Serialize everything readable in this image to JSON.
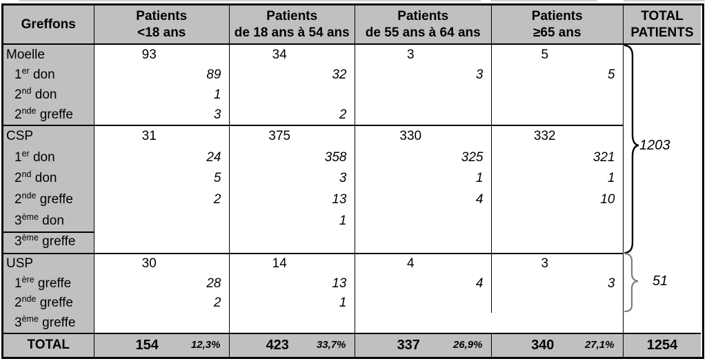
{
  "table": {
    "columns": [
      {
        "key": "greffons",
        "lines": [
          "Greffons"
        ]
      },
      {
        "key": "patients-lt-18",
        "lines": [
          "Patients",
          "<18 ans"
        ]
      },
      {
        "key": "patients-18-54",
        "lines": [
          "Patients",
          "de 18 ans à 54 ans"
        ]
      },
      {
        "key": "patients-55-64",
        "lines": [
          "Patients",
          "de 55 ans à 64 ans"
        ]
      },
      {
        "key": "patients-ge-65",
        "lines": [
          "Patients",
          "≥65 ans"
        ]
      },
      {
        "key": "total-patients",
        "lines": [
          "TOTAL",
          "PATIENTS"
        ]
      }
    ],
    "sections": [
      {
        "name": "Moelle",
        "rows": [
          {
            "pre": "Moelle",
            "sup": "",
            "post": "",
            "type": "main",
            "values": [
              "93",
              "34",
              "3",
              "5"
            ]
          },
          {
            "pre": "1",
            "sup": "er",
            "post": " don",
            "type": "sub",
            "values": [
              "89",
              "32",
              "3",
              "5"
            ]
          },
          {
            "pre": "2",
            "sup": "nd",
            "post": " don",
            "type": "sub",
            "values": [
              "1",
              "",
              "",
              ""
            ]
          },
          {
            "pre": "2",
            "sup": "nde",
            "post": " greffe",
            "type": "sub",
            "values": [
              "3",
              "2",
              "",
              ""
            ]
          }
        ]
      },
      {
        "name": "CSP",
        "rows": [
          {
            "pre": "CSP",
            "sup": "",
            "post": "",
            "type": "main",
            "values": [
              "31",
              "375",
              "330",
              "332"
            ]
          },
          {
            "pre": "1",
            "sup": "er",
            "post": " don",
            "type": "sub",
            "values": [
              "24",
              "358",
              "325",
              "321"
            ]
          },
          {
            "pre": "2",
            "sup": "nd",
            "post": " don",
            "type": "sub",
            "values": [
              "5",
              "3",
              "1",
              "1"
            ]
          },
          {
            "pre": "2",
            "sup": "nde",
            "post": " greffe",
            "type": "sub",
            "values": [
              "2",
              "13",
              "4",
              "10"
            ]
          },
          {
            "pre": "3",
            "sup": "ème",
            "post": " don",
            "type": "sub",
            "values": [
              "",
              "1",
              "",
              ""
            ],
            "label_underline": true
          },
          {
            "pre": "3",
            "sup": "ème",
            "post": " greffe",
            "type": "sub",
            "values": [
              "",
              "",
              "",
              ""
            ]
          }
        ]
      },
      {
        "name": "USP",
        "rows": [
          {
            "pre": "USP",
            "sup": "",
            "post": "",
            "type": "main",
            "values": [
              "30",
              "14",
              "4",
              "3"
            ]
          },
          {
            "pre": "1",
            "sup": "ère",
            "post": " greffe",
            "type": "sub",
            "values": [
              "28",
              "13",
              "4",
              "3"
            ]
          },
          {
            "pre": "2",
            "sup": "nde",
            "post": " greffe",
            "type": "sub",
            "values": [
              "2",
              "1",
              "",
              ""
            ]
          },
          {
            "pre": "3",
            "sup": "ème",
            "post": " greffe",
            "type": "sub",
            "values": [
              "",
              "",
              "",
              ""
            ]
          }
        ]
      }
    ],
    "total_row": {
      "label": "TOTAL",
      "cells": [
        {
          "value": "154",
          "pct": "12,3%"
        },
        {
          "value": "423",
          "pct": "33,7%"
        },
        {
          "value": "337",
          "pct": "26,9%"
        },
        {
          "value": "340",
          "pct": "27,1%"
        }
      ],
      "grand_total": "1254"
    },
    "braces": [
      {
        "value": "1203",
        "covers": "Moelle + CSP"
      },
      {
        "value": "51",
        "covers": "USP"
      }
    ]
  },
  "colors": {
    "shaded_fill": "#c0c0c0",
    "border": "#000000",
    "usp_brace": "#7f7f7f"
  }
}
